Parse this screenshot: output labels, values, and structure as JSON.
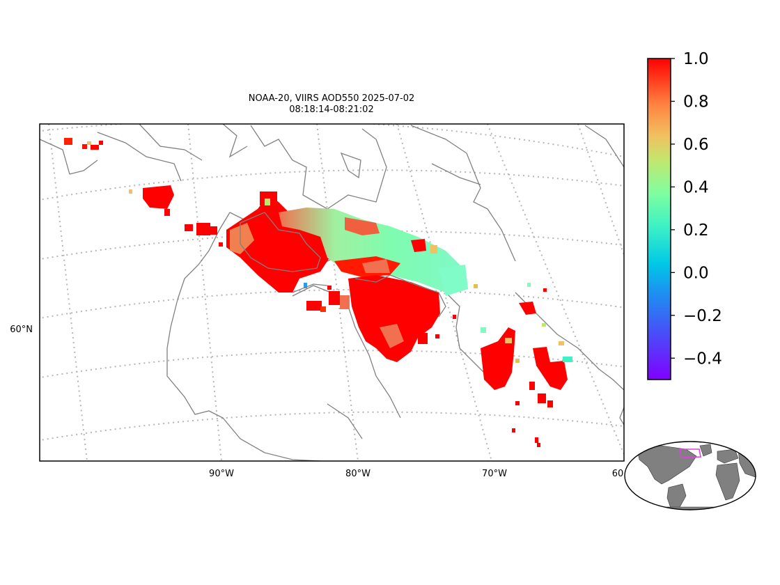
{
  "title": {
    "line1": "NOAA-20, VIIRS AOD550 2025-07-02",
    "line2": "08:18:14-08:21:02"
  },
  "map": {
    "projection": "conic",
    "gridlines": "dotted",
    "lon_labels": [
      "90°W",
      "80°W",
      "70°W",
      "60"
    ],
    "lat_labels": [
      "60°N"
    ],
    "coastline_color": "#808080",
    "gridline_color": "#b5b5b5"
  },
  "colorbar": {
    "colormap": "rainbow",
    "min": -0.5,
    "max": 1.0,
    "ticks": [
      1.0,
      0.8,
      0.6,
      0.4,
      0.2,
      0.0,
      -0.2,
      -0.4
    ],
    "tick_labels": [
      "1.0",
      "0.8",
      "0.6",
      "0.4",
      "0.2",
      "0.0",
      "−0.2",
      "−0.4"
    ]
  },
  "inset_globe": {
    "land_color": "#808080",
    "ocean_color": "#ffffff",
    "region_box_color": "#e040e0"
  },
  "chart_data": {
    "type": "heatmap",
    "variable": "AOD550",
    "value_range": [
      -0.5,
      1.0
    ],
    "description_regions": [
      {
        "name": "hudson-bay-west",
        "value": 0.95
      },
      {
        "name": "hudson-strait-band",
        "value": 0.25
      },
      {
        "name": "quebec-central",
        "value": 0.95
      },
      {
        "name": "labrador",
        "value": 0.95
      },
      {
        "name": "nunavut-north",
        "value": 0.9
      }
    ]
  }
}
